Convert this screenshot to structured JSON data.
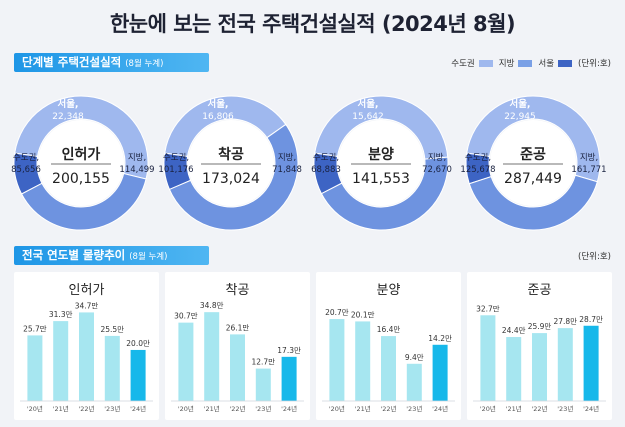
{
  "header": {
    "title": "한눈에 보는 전국 주택건설실적 (2024년 8월)"
  },
  "section1": {
    "label": "단계별 주택건설실적",
    "sub": "(8월 누계)"
  },
  "section2": {
    "label": "전국 연도별 물량추이",
    "sub": "(8월 누계)"
  },
  "legend": {
    "items": [
      {
        "label": "수도권",
        "color": "#9fb8ee"
      },
      {
        "label": "지방",
        "color": "#7aa0e6"
      },
      {
        "label": "서울",
        "color": "#3d64c4"
      }
    ],
    "unit": "(단위:호)"
  },
  "unit2": "(단위:호)",
  "colors": {
    "capital": "#6e93e0",
    "region": "#9fb8ee",
    "seoul": "#3d64c4",
    "bar": "#a6e6f0",
    "bar_latest": "#17b8ea"
  },
  "chart_data": [
    {
      "type": "pie",
      "name": "인허가",
      "total_label": "200,155",
      "slices": [
        {
          "label": "서울,",
          "value_label": "22,348",
          "value": 22348
        },
        {
          "label": "지방,",
          "value_label": "114,499",
          "value": 114499
        },
        {
          "label": "수도권,",
          "value_label": "85,656",
          "value": 85656
        }
      ]
    },
    {
      "type": "pie",
      "name": "착공",
      "total_label": "173,024",
      "slices": [
        {
          "label": "서울,",
          "value_label": "16,806",
          "value": 16806
        },
        {
          "label": "지방,",
          "value_label": "71,848",
          "value": 71848
        },
        {
          "label": "수도권,",
          "value_label": "101,176",
          "value": 101176
        }
      ]
    },
    {
      "type": "pie",
      "name": "분양",
      "total_label": "141,553",
      "slices": [
        {
          "label": "서울,",
          "value_label": "15,642",
          "value": 15642
        },
        {
          "label": "지방,",
          "value_label": "72,670",
          "value": 72670
        },
        {
          "label": "수도권,",
          "value_label": "68,883",
          "value": 68883
        }
      ]
    },
    {
      "type": "pie",
      "name": "준공",
      "total_label": "287,449",
      "slices": [
        {
          "label": "서울,",
          "value_label": "22,945",
          "value": 22945
        },
        {
          "label": "지방,",
          "value_label": "161,771",
          "value": 161771
        },
        {
          "label": "수도권,",
          "value_label": "125,678",
          "value": 125678
        }
      ]
    },
    {
      "type": "bar",
      "title": "인허가",
      "categories": [
        "'20년",
        "'21년",
        "'22년",
        "'23년",
        "'24년"
      ],
      "values": [
        25.7,
        31.3,
        34.7,
        25.5,
        20.0
      ],
      "value_labels": [
        "25.7만",
        "31.3만",
        "34.7만",
        "25.5만",
        "20.0만"
      ],
      "ylim": [
        0,
        38
      ]
    },
    {
      "type": "bar",
      "title": "착공",
      "categories": [
        "'20년",
        "'21년",
        "'22년",
        "'23년",
        "'24년"
      ],
      "values": [
        30.7,
        34.8,
        26.1,
        12.7,
        17.3
      ],
      "value_labels": [
        "30.7만",
        "34.8만",
        "26.1만",
        "12.7만",
        "17.3만"
      ],
      "ylim": [
        0,
        38
      ]
    },
    {
      "type": "bar",
      "title": "분양",
      "categories": [
        "'20년",
        "'21년",
        "'22년",
        "'23년",
        "'24년"
      ],
      "values": [
        20.7,
        20.1,
        16.4,
        9.4,
        14.2
      ],
      "value_labels": [
        "20.7만",
        "20.1만",
        "16.4만",
        "9.4만",
        "14.2만"
      ],
      "ylim": [
        0,
        24.5
      ]
    },
    {
      "type": "bar",
      "title": "준공",
      "categories": [
        "'20년",
        "'21년",
        "'22년",
        "'23년",
        "'24년"
      ],
      "values": [
        32.7,
        24.4,
        25.9,
        27.8,
        28.7
      ],
      "value_labels": [
        "32.7만",
        "24.4만",
        "25.9만",
        "27.8만",
        "28.7만"
      ],
      "ylim": [
        0,
        37
      ]
    }
  ]
}
